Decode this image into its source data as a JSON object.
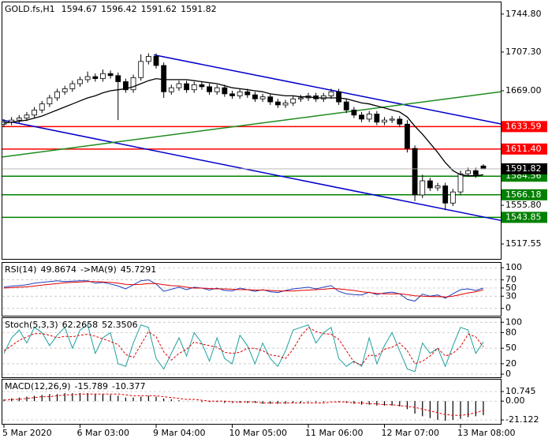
{
  "chart_data": {
    "type": "candlestick",
    "title": "GOLD.fs,H1",
    "x": [
      "5 Mar 2020",
      null,
      null,
      null,
      null,
      null,
      null,
      null,
      null,
      null,
      "6 Mar 03:00",
      null,
      null,
      null,
      null,
      null,
      null,
      null,
      null,
      null,
      "9 Mar 04:00",
      null,
      null,
      null,
      null,
      null,
      null,
      null,
      null,
      null,
      "10 Mar 05:00",
      null,
      null,
      null,
      null,
      null,
      null,
      null,
      null,
      null,
      "11 Mar 06:00",
      null,
      null,
      null,
      null,
      null,
      null,
      null,
      null,
      null,
      "12 Mar 07:00",
      null,
      null,
      null,
      null,
      null,
      null,
      null,
      null,
      null,
      "13 Mar 08:00",
      null,
      null,
      null
    ],
    "ylim": [
      1502.8,
      1756.4
    ],
    "yticks": [
      {
        "value": 1744.8,
        "label": "1744.80"
      },
      {
        "value": 1707.3,
        "label": "1707.30"
      },
      {
        "value": 1669,
        "label": "1669.00"
      },
      {
        "value": 1555.8,
        "label": "1555.80"
      },
      {
        "value": 1517.55,
        "label": "1517.55"
      }
    ],
    "ohlc": [
      [
        1636,
        1641,
        1633,
        1638
      ],
      [
        1638,
        1643,
        1635,
        1640
      ],
      [
        1640,
        1645,
        1637,
        1642
      ],
      [
        1642,
        1648,
        1639,
        1645
      ],
      [
        1645,
        1653,
        1642,
        1650
      ],
      [
        1650,
        1659,
        1647,
        1656
      ],
      [
        1656,
        1665,
        1653,
        1662
      ],
      [
        1662,
        1671,
        1659,
        1668
      ],
      [
        1668,
        1674,
        1665,
        1671
      ],
      [
        1671,
        1679,
        1668,
        1676
      ],
      [
        1676,
        1683,
        1673,
        1680
      ],
      [
        1680,
        1688,
        1677,
        1683
      ],
      [
        1683,
        1686,
        1678,
        1681
      ],
      [
        1681,
        1690,
        1678,
        1686
      ],
      [
        1686,
        1689,
        1681,
        1684
      ],
      [
        1684,
        1687,
        1640,
        1678
      ],
      [
        1678,
        1681,
        1667,
        1670
      ],
      [
        1670,
        1685,
        1667,
        1682
      ],
      [
        1682,
        1705,
        1679,
        1698
      ],
      [
        1698,
        1706,
        1695,
        1703
      ],
      [
        1703,
        1706,
        1691,
        1694
      ],
      [
        1694,
        1697,
        1662,
        1668
      ],
      [
        1668,
        1675,
        1665,
        1672
      ],
      [
        1672,
        1679,
        1669,
        1676
      ],
      [
        1676,
        1679,
        1667,
        1670
      ],
      [
        1670,
        1678,
        1667,
        1675
      ],
      [
        1675,
        1678,
        1670,
        1673
      ],
      [
        1673,
        1676,
        1665,
        1668
      ],
      [
        1668,
        1675,
        1665,
        1672
      ],
      [
        1672,
        1675,
        1663,
        1666
      ],
      [
        1666,
        1669,
        1661,
        1664
      ],
      [
        1664,
        1671,
        1661,
        1668
      ],
      [
        1668,
        1671,
        1662,
        1665
      ],
      [
        1665,
        1668,
        1658,
        1661
      ],
      [
        1661,
        1666,
        1658,
        1663
      ],
      [
        1663,
        1666,
        1655,
        1658
      ],
      [
        1658,
        1661,
        1652,
        1655
      ],
      [
        1655,
        1660,
        1652,
        1657
      ],
      [
        1657,
        1664,
        1654,
        1661
      ],
      [
        1661,
        1665,
        1658,
        1662
      ],
      [
        1662,
        1667,
        1659,
        1664
      ],
      [
        1664,
        1667,
        1658,
        1661
      ],
      [
        1661,
        1667,
        1658,
        1664
      ],
      [
        1664,
        1671,
        1661,
        1668
      ],
      [
        1668,
        1671,
        1655,
        1658
      ],
      [
        1658,
        1661,
        1647,
        1650
      ],
      [
        1650,
        1653,
        1642,
        1645
      ],
      [
        1645,
        1648,
        1638,
        1641
      ],
      [
        1641,
        1649,
        1638,
        1646
      ],
      [
        1646,
        1649,
        1635,
        1638
      ],
      [
        1638,
        1643,
        1635,
        1640
      ],
      [
        1640,
        1644,
        1637,
        1641
      ],
      [
        1641,
        1644,
        1633,
        1636
      ],
      [
        1636,
        1640,
        1608,
        1612
      ],
      [
        1612,
        1615,
        1560,
        1566
      ],
      [
        1566,
        1586,
        1563,
        1580
      ],
      [
        1580,
        1583,
        1570,
        1573
      ],
      [
        1573,
        1578,
        1570,
        1575
      ],
      [
        1575,
        1578,
        1551,
        1558
      ],
      [
        1558,
        1572,
        1555,
        1569
      ],
      [
        1569,
        1590,
        1566,
        1587
      ],
      [
        1587,
        1593,
        1584,
        1590
      ],
      [
        1590,
        1593,
        1583,
        1586
      ],
      [
        1594.67,
        1596.42,
        1591.62,
        1591.82
      ]
    ],
    "ma": {
      "color": "#000000",
      "values": [
        1637,
        1638,
        1639,
        1640,
        1642,
        1644,
        1647,
        1650,
        1653,
        1656,
        1659,
        1662,
        1664,
        1667,
        1669,
        1670,
        1671,
        1673,
        1676,
        1679,
        1681,
        1680,
        1680,
        1680,
        1680,
        1679,
        1678,
        1677,
        1676,
        1674,
        1672,
        1671,
        1670,
        1669,
        1668,
        1666,
        1665,
        1664,
        1664,
        1663,
        1663,
        1662,
        1662,
        1662,
        1662,
        1661,
        1659,
        1657,
        1656,
        1654,
        1652,
        1650,
        1648,
        1643,
        1634,
        1626,
        1617,
        1608,
        1598,
        1590,
        1586,
        1585,
        1585,
        1586
      ]
    },
    "levels": [
      {
        "value": 1633.59,
        "color": "#ff0000"
      },
      {
        "value": 1611.4,
        "label": "1611.40",
        "color": "#ff0000"
      },
      {
        "value": 1584.56,
        "color": "#008000"
      },
      {
        "value": 1566.18,
        "color": "#008000"
      },
      {
        "value": 1543.85,
        "color": "#008000"
      }
    ],
    "trendlines": [
      {
        "color": "#0000cc",
        "points": [
          [
            19.7,
            1704.5
          ],
          [
            65.3,
            1636.2
          ]
        ]
      },
      {
        "color": "#0000cc",
        "points": [
          [
            -0.2,
            1640
          ],
          [
            65.3,
            1540.8
          ]
        ]
      },
      {
        "color": "#1e8c1e",
        "points": [
          [
            -0.2,
            1603.6
          ],
          [
            65.3,
            1668
          ]
        ]
      }
    ],
    "panels": [
      {
        "type": "line",
        "ylim": [
          -18,
          112
        ],
        "yticks": [
          100,
          70,
          50,
          30,
          0
        ],
        "series": [
          {
            "name": "RSI(14)",
            "color": "#1f3fbf",
            "values": [
              52,
              55,
              56,
              58,
              62,
              64,
              66,
              68,
              66,
              67,
              68,
              68,
              62,
              64,
              60,
              55,
              48,
              58,
              68,
              70,
              60,
              42,
              47,
              52,
              46,
              52,
              50,
              45,
              50,
              44,
              43,
              50,
              46,
              42,
              46,
              41,
              39,
              44,
              48,
              50,
              52,
              48,
              52,
              56,
              42,
              36,
              34,
              33,
              40,
              34,
              38,
              40,
              36,
              22,
              18,
              35,
              30,
              33,
              25,
              36,
              46,
              48,
              44,
              49.8674
            ]
          },
          {
            "name": "->MA(9)",
            "color": "#e00000",
            "values": [
              50,
              51,
              52,
              53,
              55,
              57,
              59,
              61,
              63,
              64,
              65,
              66,
              66,
              65,
              64,
              62,
              59,
              58,
              59,
              61,
              61,
              58,
              56,
              55,
              52,
              50,
              50,
              49,
              48,
              48,
              47,
              46,
              46,
              45,
              45,
              44,
              43,
              43,
              43,
              44,
              45,
              46,
              47,
              49,
              48,
              46,
              44,
              41,
              39,
              37,
              36,
              36,
              36,
              34,
              31,
              30,
              29,
              29,
              28,
              30,
              34,
              38,
              41,
              45.7291
            ]
          }
        ]
      },
      {
        "type": "line",
        "ylim": [
          -6,
          108
        ],
        "yticks": [
          100,
          80,
          50,
          20,
          0
        ],
        "series": [
          {
            "name": "Stoch(5,3,3)",
            "color": "#20a0a0",
            "values": [
              40,
              70,
              85,
              60,
              90,
              80,
              55,
              75,
              90,
              50,
              85,
              95,
              40,
              70,
              80,
              20,
              15,
              60,
              95,
              90,
              30,
              10,
              40,
              70,
              35,
              80,
              60,
              25,
              70,
              30,
              20,
              75,
              55,
              20,
              60,
              30,
              15,
              45,
              85,
              90,
              95,
              60,
              80,
              90,
              30,
              15,
              25,
              15,
              70,
              20,
              55,
              80,
              45,
              10,
              5,
              60,
              40,
              50,
              15,
              55,
              90,
              85,
              40,
              62.2658
            ]
          },
          {
            "color": "#e00000",
            "dash": true,
            "values": [
              45,
              55,
              65,
              72,
              78,
              78,
              75,
              70,
              73,
              72,
              75,
              77,
              73,
              68,
              63,
              57,
              38,
              32,
              57,
              82,
              72,
              43,
              27,
              40,
              48,
              62,
              58,
              55,
              52,
              42,
              40,
              42,
              50,
              50,
              45,
              37,
              35,
              30,
              48,
              73,
              90,
              82,
              78,
              77,
              67,
              45,
              23,
              18,
              37,
              35,
              48,
              52,
              60,
              45,
              20,
              25,
              35,
              50,
              35,
              40,
              53,
              77,
              72,
              52.3506
            ]
          }
        ]
      },
      {
        "type": "line",
        "ylim": [
          -25.5,
          24.1
        ],
        "yticks": [
          10.745,
          {
            "value": 0,
            "label": "0.00"
          },
          -21.122
        ],
        "series": [
          {
            "name": "MACD(12,26,9)",
            "type": "bar",
            "color": "#000000",
            "values": [
              2,
              3,
              4,
              5,
              6,
              7,
              8,
              8,
              9,
              9,
              9,
              9,
              8,
              8,
              7,
              6,
              4,
              4,
              5,
              6,
              5,
              3,
              2,
              1,
              0,
              0,
              -1,
              -1,
              -1,
              -2,
              -2,
              -2,
              -2,
              -2,
              -3,
              -3,
              -3,
              -3,
              -2,
              -2,
              -1,
              -1,
              -1,
              0,
              -1,
              -2,
              -3,
              -4,
              -4,
              -5,
              -5,
              -5,
              -6,
              -9,
              -14,
              -17,
              -19,
              -21,
              -22,
              -21,
              -20,
              -18,
              -17,
              -15.789
            ]
          },
          {
            "color": "#e00000",
            "dash": true,
            "values": [
              1,
              2,
              2,
              3,
              4,
              5,
              5,
              6,
              7,
              7,
              8,
              8,
              8,
              8,
              8,
              8,
              7,
              6,
              6,
              6,
              6,
              5,
              4,
              3,
              2,
              2,
              1,
              0,
              0,
              0,
              -1,
              -1,
              -1,
              -1,
              -2,
              -2,
              -2,
              -2,
              -2,
              -2,
              -2,
              -2,
              -2,
              -1,
              -1,
              -1,
              -2,
              -2,
              -3,
              -3,
              -4,
              -4,
              -5,
              -6,
              -7,
              -9,
              -11,
              -13,
              -15,
              -16,
              -16,
              -15,
              -13,
              -10.377
            ]
          }
        ]
      }
    ]
  }
}
